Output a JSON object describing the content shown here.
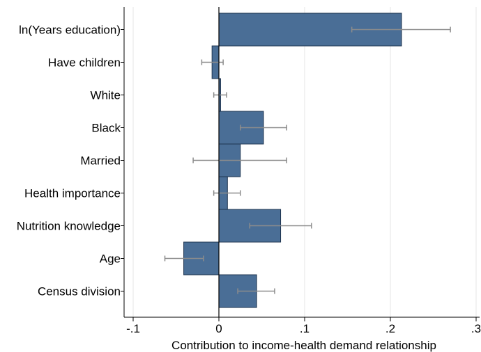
{
  "chart_data": {
    "type": "bar",
    "orientation": "horizontal",
    "categories": [
      "ln(Years education)",
      "Have children",
      "White",
      "Black",
      "Married",
      "Health importance",
      "Nutrition knowledge",
      "Age",
      "Census division"
    ],
    "values": [
      0.213,
      -0.008,
      0.002,
      0.052,
      0.025,
      0.01,
      0.072,
      -0.041,
      0.044
    ],
    "ci_low": [
      0.155,
      -0.02,
      -0.006,
      0.025,
      -0.03,
      -0.006,
      0.036,
      -0.063,
      0.022
    ],
    "ci_high": [
      0.27,
      0.005,
      0.009,
      0.079,
      0.079,
      0.025,
      0.108,
      -0.018,
      0.065
    ],
    "xlabel": "Contribution to income-health demand relationship",
    "ylabel": "",
    "title": "",
    "xlim": [
      -0.11,
      0.3
    ],
    "xticks": [
      -0.1,
      0,
      0.1,
      0.2,
      0.3
    ],
    "xtick_labels": [
      "-.1",
      "0",
      ".1",
      ".2",
      ".3"
    ],
    "grid": "vertical",
    "colors": {
      "bar": "#4a6e96",
      "bar_edge": "#1f3550",
      "error_bar": "#8c8c8c"
    }
  }
}
